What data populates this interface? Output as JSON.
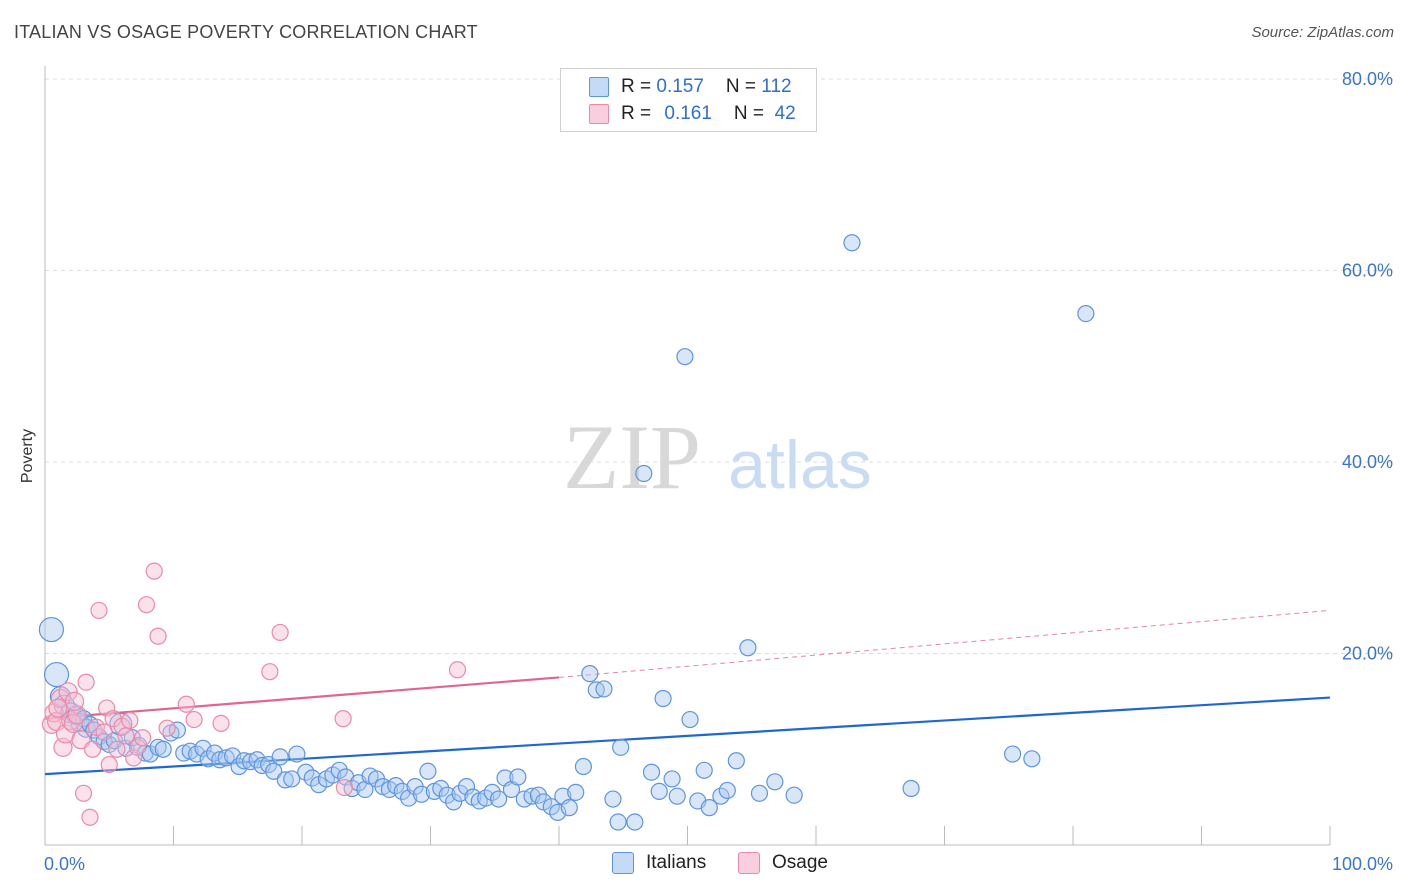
{
  "header": {
    "title": "ITALIAN VS OSAGE POVERTY CORRELATION CHART",
    "source": "Source: ZipAtlas.com"
  },
  "watermark": {
    "zip": "ZIP",
    "atlas": "atlas"
  },
  "legend": {
    "rows": [
      {
        "r_label": "R = ",
        "r_value": "0.157",
        "n_label": "N = ",
        "n_value": "112",
        "color": "#8ab4ea"
      },
      {
        "r_label": "R = ",
        "r_value": "0.161",
        "n_label": "N = ",
        "n_value": " 42",
        "color": "#f3a9c0"
      }
    ]
  },
  "bottom_legend": [
    {
      "label": "Italians",
      "color": "#8ab4ea"
    },
    {
      "label": "Osage",
      "color": "#f3a9c0"
    }
  ],
  "chart_data": {
    "type": "scatter",
    "title": "ITALIAN VS OSAGE POVERTY CORRELATION CHART",
    "ylabel": "Poverty",
    "xlabel": "",
    "xlim": [
      0,
      100
    ],
    "ylim": [
      0,
      80
    ],
    "x_tick_labels": [
      "0.0%",
      "100.0%"
    ],
    "y_tick_labels": [
      {
        "value": 80,
        "label": "80.0%"
      },
      {
        "value": 60,
        "label": "60.0%"
      },
      {
        "value": 40,
        "label": "40.0%"
      },
      {
        "value": 20,
        "label": "20.0%"
      }
    ],
    "series": [
      {
        "name": "Italians",
        "color": "#5d95e0",
        "fill": "#a9c8f0",
        "trend": {
          "x0": 0,
          "y0": 7.4,
          "x1": 100,
          "y1": 15.4,
          "color": "#1f67d1"
        },
        "points": [
          [
            0.5,
            22.5,
            12
          ],
          [
            0.9,
            17.8,
            12
          ],
          [
            1.2,
            15.5,
            10
          ],
          [
            1.5,
            14.6,
            10
          ],
          [
            2.0,
            13.8,
            10
          ],
          [
            2.4,
            13.5,
            9
          ],
          [
            2.7,
            12.8,
            9
          ],
          [
            3.0,
            13.2,
            8
          ],
          [
            3.2,
            12.2,
            9
          ],
          [
            3.5,
            12.6,
            8
          ],
          [
            3.8,
            12.0,
            8
          ],
          [
            4.2,
            11.3,
            8
          ],
          [
            4.6,
            10.8,
            8
          ],
          [
            5.0,
            10.5,
            8
          ],
          [
            5.4,
            10.9,
            8
          ],
          [
            5.9,
            12.6,
            11
          ],
          [
            6.3,
            10.1,
            8
          ],
          [
            6.8,
            11.2,
            8
          ],
          [
            7.3,
            10.4,
            8
          ],
          [
            7.8,
            9.6,
            8
          ],
          [
            8.2,
            9.5,
            8
          ],
          [
            8.8,
            10.2,
            8
          ],
          [
            9.2,
            10.0,
            8
          ],
          [
            9.8,
            11.7,
            8
          ],
          [
            10.3,
            12.0,
            8
          ],
          [
            10.8,
            9.6,
            8
          ],
          [
            11.3,
            9.8,
            8
          ],
          [
            11.8,
            9.5,
            8
          ],
          [
            12.3,
            10.1,
            8
          ],
          [
            12.7,
            9.0,
            8
          ],
          [
            13.2,
            9.6,
            8
          ],
          [
            13.6,
            8.9,
            8
          ],
          [
            14.1,
            9.1,
            8
          ],
          [
            14.6,
            9.3,
            8
          ],
          [
            15.1,
            8.2,
            8
          ],
          [
            15.5,
            8.8,
            8
          ],
          [
            16.0,
            8.7,
            8
          ],
          [
            16.5,
            8.9,
            8
          ],
          [
            16.9,
            8.3,
            8
          ],
          [
            17.4,
            8.4,
            8
          ],
          [
            17.8,
            7.7,
            8
          ],
          [
            18.3,
            9.2,
            8
          ],
          [
            18.7,
            6.8,
            8
          ],
          [
            19.2,
            6.9,
            8
          ],
          [
            19.6,
            9.5,
            8
          ],
          [
            20.3,
            7.6,
            8
          ],
          [
            20.8,
            7.0,
            8
          ],
          [
            21.3,
            6.3,
            8
          ],
          [
            21.9,
            6.9,
            8
          ],
          [
            22.4,
            7.3,
            8
          ],
          [
            22.9,
            7.8,
            8
          ],
          [
            23.4,
            7.1,
            8
          ],
          [
            23.9,
            5.9,
            8
          ],
          [
            24.4,
            6.5,
            8
          ],
          [
            24.9,
            5.8,
            8
          ],
          [
            25.3,
            7.2,
            8
          ],
          [
            25.8,
            6.9,
            8
          ],
          [
            26.3,
            6.1,
            8
          ],
          [
            26.8,
            5.8,
            8
          ],
          [
            27.3,
            6.2,
            8
          ],
          [
            27.8,
            5.6,
            8
          ],
          [
            28.3,
            4.9,
            8
          ],
          [
            28.8,
            6.1,
            8
          ],
          [
            29.3,
            5.3,
            8
          ],
          [
            29.8,
            7.7,
            8
          ],
          [
            30.3,
            5.6,
            8
          ],
          [
            30.8,
            5.9,
            8
          ],
          [
            31.3,
            5.2,
            8
          ],
          [
            31.8,
            4.5,
            8
          ],
          [
            32.3,
            5.4,
            8
          ],
          [
            32.8,
            6.1,
            8
          ],
          [
            33.3,
            5.0,
            8
          ],
          [
            33.8,
            4.6,
            8
          ],
          [
            34.3,
            4.9,
            8
          ],
          [
            34.8,
            5.5,
            8
          ],
          [
            35.3,
            4.8,
            8
          ],
          [
            35.8,
            7.0,
            8
          ],
          [
            36.3,
            5.8,
            8
          ],
          [
            36.8,
            7.1,
            8
          ],
          [
            37.3,
            4.8,
            8
          ],
          [
            37.9,
            5.1,
            8
          ],
          [
            38.4,
            5.2,
            8
          ],
          [
            38.8,
            4.5,
            8
          ],
          [
            39.4,
            4.0,
            8
          ],
          [
            39.9,
            3.4,
            8
          ],
          [
            40.3,
            5.1,
            8
          ],
          [
            40.8,
            3.9,
            8
          ],
          [
            41.3,
            5.5,
            8
          ],
          [
            41.9,
            8.2,
            8
          ],
          [
            42.4,
            17.9,
            8
          ],
          [
            42.9,
            16.2,
            8
          ],
          [
            43.5,
            16.3,
            8
          ],
          [
            44.2,
            4.8,
            8
          ],
          [
            44.8,
            10.2,
            8
          ],
          [
            44.6,
            2.4,
            8
          ],
          [
            45.9,
            2.4,
            8
          ],
          [
            46.6,
            38.8,
            8
          ],
          [
            47.2,
            7.6,
            8
          ],
          [
            47.8,
            5.6,
            8
          ],
          [
            48.1,
            15.3,
            8
          ],
          [
            48.8,
            6.9,
            8
          ],
          [
            49.2,
            5.1,
            8
          ],
          [
            49.8,
            51.0,
            8
          ],
          [
            50.2,
            13.1,
            8
          ],
          [
            50.8,
            4.6,
            8
          ],
          [
            51.3,
            7.8,
            8
          ],
          [
            51.7,
            3.9,
            8
          ],
          [
            52.6,
            5.1,
            8
          ],
          [
            53.1,
            5.7,
            8
          ],
          [
            53.8,
            8.8,
            8
          ],
          [
            54.7,
            20.6,
            8
          ],
          [
            55.6,
            5.4,
            8
          ],
          [
            56.8,
            6.6,
            8
          ],
          [
            58.3,
            5.2,
            8
          ],
          [
            62.8,
            62.9,
            8
          ],
          [
            67.4,
            5.9,
            8
          ],
          [
            75.3,
            9.5,
            8
          ],
          [
            76.8,
            9.0,
            8
          ],
          [
            81.0,
            55.5,
            8
          ]
        ]
      },
      {
        "name": "Osage",
        "color": "#ea8aa8",
        "fill": "#f6bcd0",
        "trend": {
          "x0": 0,
          "y0": 13.2,
          "x1": 40,
          "y1": 17.5,
          "color": "#e06590"
        },
        "trend_extension": {
          "x0": 40,
          "y0": 17.5,
          "x1": 100,
          "y1": 24.5
        },
        "points": [
          [
            0.5,
            12.6,
            9
          ],
          [
            0.7,
            13.8,
            9
          ],
          [
            0.9,
            12.9,
            9
          ],
          [
            1.2,
            15.3,
            9
          ],
          [
            1.4,
            10.2,
            9
          ],
          [
            1.6,
            11.6,
            9
          ],
          [
            1.8,
            16.0,
            9
          ],
          [
            2.0,
            13.0,
            9
          ],
          [
            2.2,
            12.7,
            9
          ],
          [
            2.5,
            13.6,
            9
          ],
          [
            2.8,
            11.0,
            9
          ],
          [
            3.0,
            5.4,
            8
          ],
          [
            3.2,
            17.0,
            8
          ],
          [
            3.5,
            2.9,
            8
          ],
          [
            3.7,
            10.0,
            8
          ],
          [
            4.0,
            12.3,
            8
          ],
          [
            4.2,
            24.5,
            8
          ],
          [
            4.6,
            11.8,
            8
          ],
          [
            4.8,
            14.3,
            8
          ],
          [
            5.0,
            8.4,
            8
          ],
          [
            5.3,
            13.2,
            8
          ],
          [
            5.6,
            10.0,
            8
          ],
          [
            6.0,
            12.4,
            8
          ],
          [
            6.3,
            11.4,
            8
          ],
          [
            6.6,
            13.0,
            8
          ],
          [
            6.9,
            9.1,
            8
          ],
          [
            7.2,
            10.2,
            8
          ],
          [
            7.6,
            11.2,
            8
          ],
          [
            7.9,
            25.1,
            8
          ],
          [
            8.5,
            28.6,
            8
          ],
          [
            8.8,
            21.8,
            8
          ],
          [
            9.5,
            12.2,
            8
          ],
          [
            11.0,
            14.7,
            8
          ],
          [
            11.6,
            13.1,
            8
          ],
          [
            13.7,
            12.7,
            8
          ],
          [
            17.5,
            18.1,
            8
          ],
          [
            18.3,
            22.2,
            8
          ],
          [
            23.2,
            13.2,
            8
          ],
          [
            23.3,
            6.0,
            8
          ],
          [
            32.1,
            18.3,
            8
          ],
          [
            1.0,
            14.3,
            9
          ],
          [
            2.3,
            15.0,
            9
          ]
        ]
      }
    ]
  }
}
